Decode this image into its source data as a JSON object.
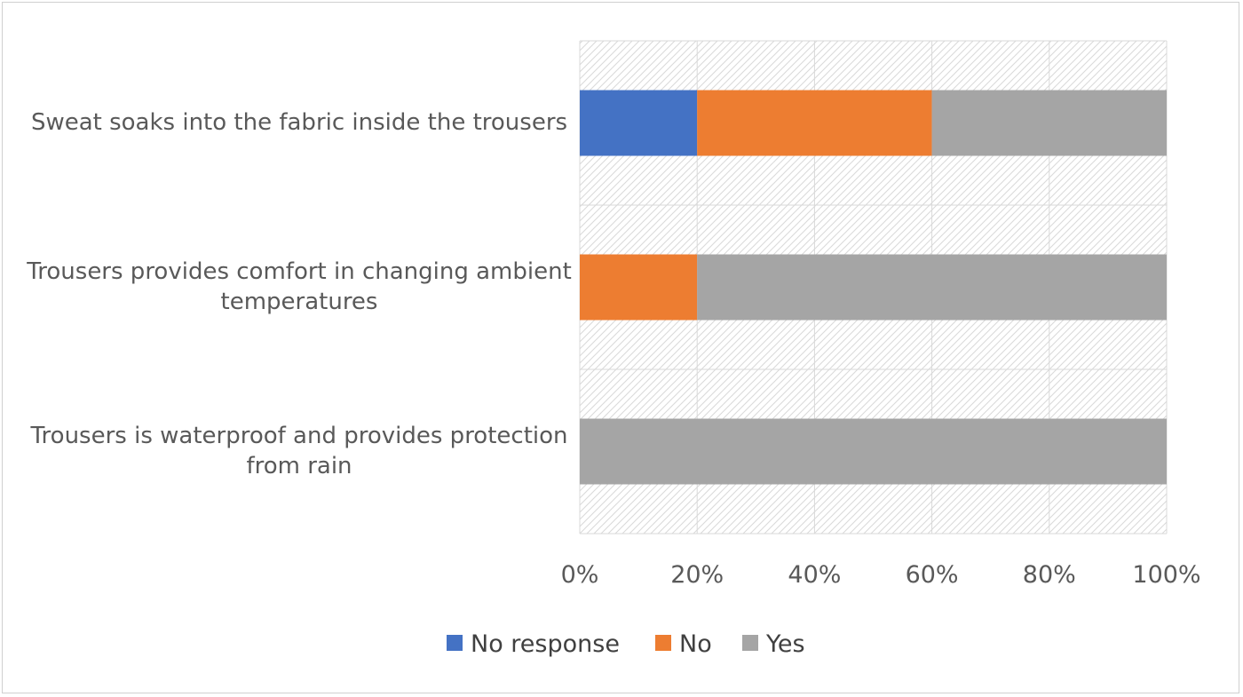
{
  "chart_data": {
    "type": "bar",
    "orientation": "horizontal",
    "stacked": "percent",
    "title": "",
    "xlabel": "",
    "ylabel": "",
    "categories": [
      [
        "Sweat soaks into the fabric inside the trousers"
      ],
      [
        "Trousers provides comfort in changing ambient",
        "temperatures"
      ],
      [
        "Trousers is waterproof and provides protection",
        "from rain"
      ]
    ],
    "series": [
      {
        "name": "No response",
        "color": "#4472C4",
        "values": [
          20,
          0,
          0
        ]
      },
      {
        "name": "No",
        "color": "#ED7D31",
        "values": [
          40,
          20,
          0
        ]
      },
      {
        "name": "Yes",
        "color": "#A5A5A5",
        "values": [
          40,
          80,
          100
        ]
      }
    ],
    "xlim": [
      0,
      100
    ],
    "xticks": [
      "0%",
      "20%",
      "40%",
      "60%",
      "80%",
      "100%"
    ],
    "grid": true,
    "plot_background": "hatched",
    "legend_position": "bottom"
  }
}
